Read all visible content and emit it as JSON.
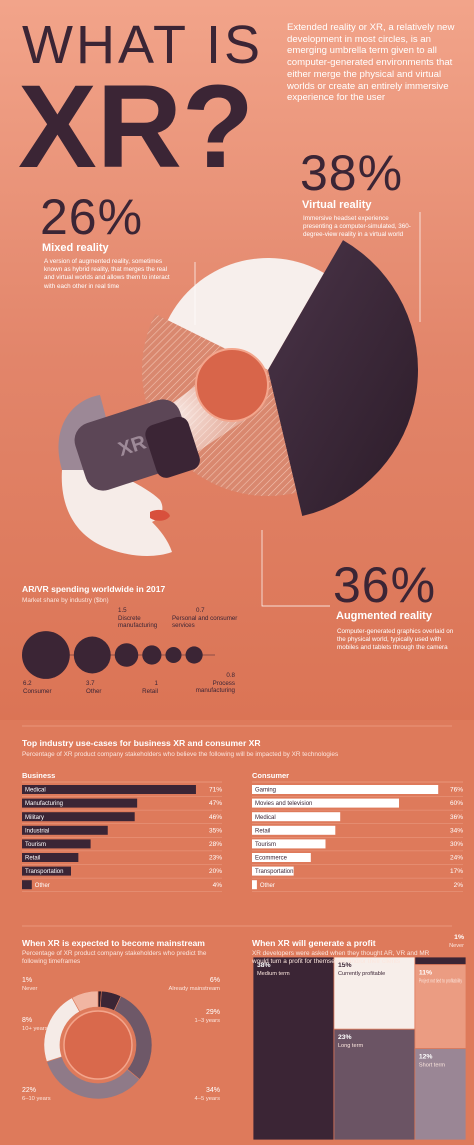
{
  "header": {
    "title_line1": "WHAT IS",
    "title_line2": "XR?",
    "headset_label": "XR",
    "intro": "Extended reality or XR, a relatively new development in most circles, is an emerging umbrella term given to all computer-generated environments that either merge the physical and virtual worlds or create an entirely immersive experience for the user"
  },
  "realities": [
    {
      "value": 26,
      "label": "26%",
      "name": "Mixed reality",
      "description": "A version of augmented reality, sometimes known as hybrid reality, that merges the real and virtual worlds and allows them to interact with each other in real time"
    },
    {
      "value": 38,
      "label": "38%",
      "name": "Virtual reality",
      "description": "Immersive headset experience presenting a computer-simulated, 360-degree-view reality in a virtual world"
    },
    {
      "value": 36,
      "label": "36%",
      "name": "Augmented reality",
      "description": "Computer-generated graphics overlaid on the physical world, typically used with mobiles and tablets through the camera"
    }
  ],
  "spending": {
    "title": "AR/VR spending worldwide in 2017",
    "subtitle": "Market share by industry ($bn)",
    "items": [
      {
        "name": "Consumer",
        "value": 6.2
      },
      {
        "name": "Other",
        "value": 3.7
      },
      {
        "name": "Discrete manufacturing",
        "value": 1.5
      },
      {
        "name": "Retail",
        "value": 1
      },
      {
        "name": "Personal and consumer services",
        "value": 0.7
      },
      {
        "name": "Process manufacturing",
        "value": 0.8
      }
    ]
  },
  "use_cases": {
    "title": "Top industry use-cases for business XR and consumer XR",
    "subtitle": "Percentage of XR product company stakeholders who believe the following will be impacted by XR technologies",
    "business": {
      "heading": "Business",
      "items": [
        {
          "name": "Medical",
          "value": 71,
          "label": "71%"
        },
        {
          "name": "Manufacturing",
          "value": 47,
          "label": "47%"
        },
        {
          "name": "Military",
          "value": 46,
          "label": "46%"
        },
        {
          "name": "Industrial",
          "value": 35,
          "label": "35%"
        },
        {
          "name": "Tourism",
          "value": 28,
          "label": "28%"
        },
        {
          "name": "Retail",
          "value": 23,
          "label": "23%"
        },
        {
          "name": "Transportation",
          "value": 20,
          "label": "20%"
        },
        {
          "name": "Other",
          "value": 4,
          "label": "4%"
        }
      ]
    },
    "consumer": {
      "heading": "Consumer",
      "items": [
        {
          "name": "Gaming",
          "value": 76,
          "label": "76%"
        },
        {
          "name": "Movies and television",
          "value": 60,
          "label": "60%"
        },
        {
          "name": "Medical",
          "value": 36,
          "label": "36%"
        },
        {
          "name": "Retail",
          "value": 34,
          "label": "34%"
        },
        {
          "name": "Tourism",
          "value": 30,
          "label": "30%"
        },
        {
          "name": "Ecommerce",
          "value": 24,
          "label": "24%"
        },
        {
          "name": "Transportation",
          "value": 17,
          "label": "17%"
        },
        {
          "name": "Other",
          "value": 2,
          "label": "2%"
        }
      ]
    }
  },
  "mainstream": {
    "title": "When XR is expected to become mainstream",
    "subtitle": "Percentage of XR product company stakeholders who predict the following timeframes",
    "items": [
      {
        "name": "Never",
        "value": 1,
        "label": "1%",
        "color": "#2c1c29"
      },
      {
        "name": "Already mainstream",
        "value": 6,
        "label": "6%",
        "color": "#3b2535"
      },
      {
        "name": "1–3 years",
        "value": 29,
        "label": "29%",
        "color": "#6e5868"
      },
      {
        "name": "4–5 years",
        "value": 34,
        "label": "34%",
        "color": "#8f7a88"
      },
      {
        "name": "6–10 years",
        "value": 22,
        "label": "22%",
        "color": "#f5ebe7"
      },
      {
        "name": "10+ years",
        "value": 8,
        "label": "8%",
        "color": "#f1b6a2"
      }
    ]
  },
  "profit": {
    "title": "When XR will generate a profit",
    "subtitle": "XR developers were asked when they thought AR, VR and MR would turn a profit for themselves and/or their clients",
    "items": [
      {
        "name": "Medium term",
        "value": 38,
        "label": "38%",
        "color": "#3b2535"
      },
      {
        "name": "Currently profitable",
        "value": 15,
        "label": "15%",
        "color": "#f7eeea"
      },
      {
        "name": "Long term",
        "value": 23,
        "label": "23%",
        "color": "#6b5464"
      },
      {
        "name": "Never",
        "value": 1,
        "label": "1%",
        "color": "#3b2535"
      },
      {
        "name": "Project not tied to profitability",
        "value": 11,
        "label": "11%",
        "color": "#eb9c82"
      },
      {
        "name": "Short term",
        "value": 12,
        "label": "12%",
        "color": "#9a8695"
      }
    ]
  }
}
